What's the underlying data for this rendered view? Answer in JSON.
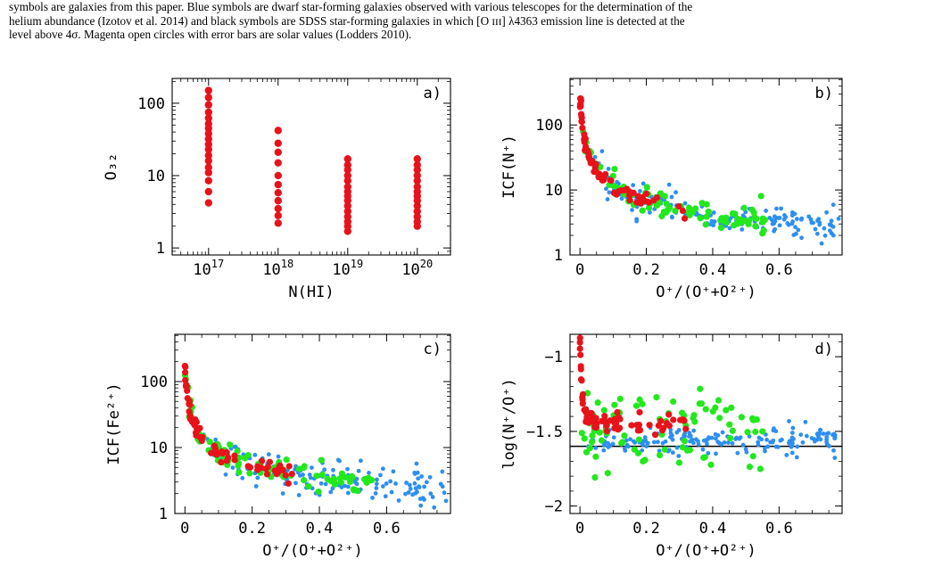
{
  "caption": {
    "lines": [
      "symbols are galaxies from this paper. Blue symbols are dwarf star-forming galaxies observed with various telescopes for the determination of the",
      "helium abundance (Izotov et al. 2014) and black symbols are SDSS star-forming galaxies in which [O ɪɪɪ] λ4363 emission line is detected at the",
      "level above 4σ. Magenta open circles with error bars are solar values (Lodders 2010)."
    ]
  },
  "colors": {
    "red": "#e8121a",
    "green": "#22e81c",
    "blue": "#2d8ff0",
    "axis": "#000000"
  },
  "chart_data": [
    {
      "panel": "a)",
      "type": "scatter",
      "xlabel": "N(HI)",
      "ylabel": "O₃₂",
      "xscale": "log",
      "yscale": "log",
      "xlim": [
        3e+16,
        3e+20
      ],
      "ylim": [
        0.8,
        220
      ],
      "xticks": [
        {
          "v": 1e+17,
          "base": "10",
          "exp": "17"
        },
        {
          "v": 1e+18,
          "base": "10",
          "exp": "18"
        },
        {
          "v": 1e+19,
          "base": "10",
          "exp": "19"
        },
        {
          "v": 1e+20,
          "base": "10",
          "exp": "20"
        }
      ],
      "yticks": [
        {
          "v": 1,
          "label": "1"
        },
        {
          "v": 10,
          "label": "10"
        },
        {
          "v": 100,
          "label": "100"
        }
      ],
      "series": [
        {
          "color": "red",
          "points": [
            [
              1e+17,
              150
            ],
            [
              1e+17,
              120
            ],
            [
              1e+17,
              95
            ],
            [
              1e+17,
              75
            ],
            [
              1e+17,
              62
            ],
            [
              1e+17,
              52
            ],
            [
              1e+17,
              45
            ],
            [
              1e+17,
              38
            ],
            [
              1e+17,
              32
            ],
            [
              1e+17,
              27
            ],
            [
              1e+17,
              23
            ],
            [
              1e+17,
              19
            ],
            [
              1e+17,
              16
            ],
            [
              1e+17,
              13
            ],
            [
              1e+17,
              11
            ],
            [
              1e+17,
              8.5
            ],
            [
              1e+17,
              6
            ],
            [
              1e+17,
              4.2
            ],
            [
              1e+18,
              42
            ],
            [
              1e+18,
              28
            ],
            [
              1e+18,
              21
            ],
            [
              1e+18,
              15
            ],
            [
              1e+18,
              10
            ],
            [
              1e+18,
              7.5
            ],
            [
              1e+18,
              5.8
            ],
            [
              1e+18,
              4.5
            ],
            [
              1e+18,
              3.5
            ],
            [
              1e+18,
              2.8
            ],
            [
              1e+18,
              2.2
            ],
            [
              1e+19,
              17
            ],
            [
              1e+19,
              14
            ],
            [
              1e+19,
              12
            ],
            [
              1e+19,
              10
            ],
            [
              1e+19,
              8.5
            ],
            [
              1e+19,
              7
            ],
            [
              1e+19,
              6
            ],
            [
              1e+19,
              5.2
            ],
            [
              1e+19,
              4.5
            ],
            [
              1e+19,
              3.8
            ],
            [
              1e+19,
              3.2
            ],
            [
              1e+19,
              2.7
            ],
            [
              1e+19,
              2.3
            ],
            [
              1e+19,
              2
            ],
            [
              1e+19,
              1.7
            ],
            [
              1e+20,
              17
            ],
            [
              1e+20,
              14
            ],
            [
              1e+20,
              12
            ],
            [
              1e+20,
              10
            ],
            [
              1e+20,
              8.5
            ],
            [
              1e+20,
              7
            ],
            [
              1e+20,
              6
            ],
            [
              1e+20,
              5.2
            ],
            [
              1e+20,
              4.5
            ],
            [
              1e+20,
              3.8
            ],
            [
              1e+20,
              3.2
            ],
            [
              1e+20,
              2.7
            ],
            [
              1e+20,
              2.3
            ],
            [
              1e+20,
              2
            ]
          ]
        }
      ]
    },
    {
      "panel": "b)",
      "type": "scatter",
      "xlabel": "O⁺/(O⁺+O²⁺)",
      "ylabel": "ICF(N⁺)",
      "xscale": "linear",
      "yscale": "log",
      "xlim": [
        -0.03,
        0.79
      ],
      "ylim": [
        1,
        520
      ],
      "xticks": [
        {
          "v": 0,
          "label": "0"
        },
        {
          "v": 0.2,
          "label": "0.2"
        },
        {
          "v": 0.4,
          "label": "0.4"
        },
        {
          "v": 0.6,
          "label": "0.6"
        }
      ],
      "yticks": [
        {
          "v": 1,
          "label": "1"
        },
        {
          "v": 10,
          "label": "10"
        },
        {
          "v": 100,
          "label": "100"
        }
      ],
      "curve": {
        "type": "icf",
        "amp": 0.95,
        "off": 0.95
      },
      "series": [
        {
          "color": "blue",
          "xrange": [
            0.04,
            0.78
          ],
          "n": 170,
          "scatter": 0.12,
          "seed": 3
        },
        {
          "color": "green",
          "xrange": [
            0.0,
            0.56
          ],
          "n": 85,
          "scatter": 0.1,
          "seed": 7
        },
        {
          "color": "red",
          "xrange": [
            0.0,
            0.32
          ],
          "n": 70,
          "scatter": 0.06,
          "seed": 11
        }
      ]
    },
    {
      "panel": "c)",
      "type": "scatter",
      "xlabel": "O⁺/(O⁺+O²⁺)",
      "ylabel": "ICF(Fe²⁺)",
      "xscale": "linear",
      "yscale": "log",
      "xlim": [
        -0.03,
        0.79
      ],
      "ylim": [
        1,
        520
      ],
      "xticks": [
        {
          "v": 0,
          "label": "0"
        },
        {
          "v": 0.2,
          "label": "0.2"
        },
        {
          "v": 0.4,
          "label": "0.4"
        },
        {
          "v": 0.6,
          "label": "0.6"
        }
      ],
      "yticks": [
        {
          "v": 1,
          "label": "1"
        },
        {
          "v": 10,
          "label": "10"
        },
        {
          "v": 100,
          "label": "100"
        }
      ],
      "curve": {
        "type": "icf",
        "amp": 0.75,
        "off": 1.3
      },
      "series": [
        {
          "color": "blue",
          "xrange": [
            0.04,
            0.78
          ],
          "n": 170,
          "scatter": 0.14,
          "seed": 5
        },
        {
          "color": "green",
          "xrange": [
            0.0,
            0.56
          ],
          "n": 85,
          "scatter": 0.1,
          "seed": 9
        },
        {
          "color": "red",
          "xrange": [
            0.0,
            0.32
          ],
          "n": 70,
          "scatter": 0.06,
          "seed": 13
        }
      ]
    },
    {
      "panel": "d)",
      "type": "scatter",
      "xlabel": "O⁺/(O⁺+O²⁺)",
      "ylabel": "log(N⁺/O⁺)",
      "xscale": "linear",
      "yscale": "linear",
      "xlim": [
        -0.03,
        0.79
      ],
      "ylim": [
        -2.05,
        -0.85
      ],
      "xticks": [
        {
          "v": 0,
          "label": "0"
        },
        {
          "v": 0.2,
          "label": "0.2"
        },
        {
          "v": 0.4,
          "label": "0.4"
        },
        {
          "v": 0.6,
          "label": "0.6"
        }
      ],
      "yticks": [
        {
          "v": -2,
          "label": "−2"
        },
        {
          "v": -1.5,
          "label": "−1.5"
        },
        {
          "v": -1,
          "label": "−1"
        }
      ],
      "hline": -1.6,
      "curve": {
        "type": "nsat"
      },
      "series": [
        {
          "color": "blue",
          "xrange": [
            0.02,
            0.78
          ],
          "n": 170,
          "scatter": 0.045,
          "seed": 4
        },
        {
          "color": "green",
          "xrange": [
            0.0,
            0.56
          ],
          "n": 85,
          "scatter": 0.08,
          "seed": 8
        },
        {
          "color": "red",
          "xrange": [
            0.0,
            0.32
          ],
          "n": 70,
          "scatter": 0.04,
          "seed": 12
        }
      ]
    }
  ]
}
